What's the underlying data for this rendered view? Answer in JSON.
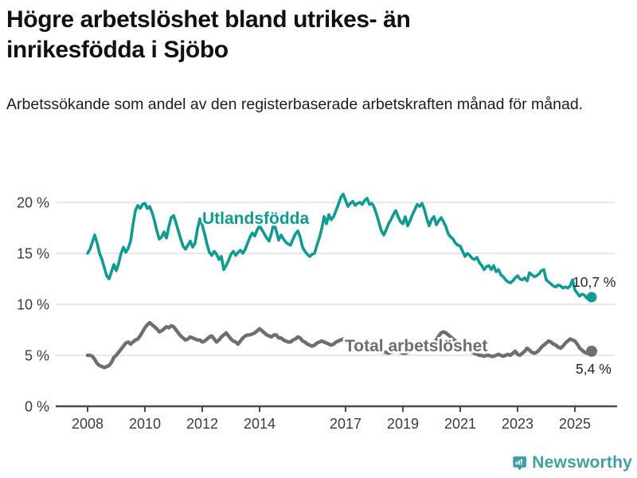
{
  "title": "Högre arbetslöshet bland utrikes- än inrikesfödda i Sjöbo",
  "subtitle": "Arbetssökande som andel av den registerbaserade arbetskraften månad för månad.",
  "footer": {
    "brand": "Newsworthy",
    "brand_color": "#3f9ea7"
  },
  "colors": {
    "series_foreign": "#0d9b93",
    "series_total": "#6c6e71",
    "gridline": "#d9d9d9",
    "axis": "#4a4a4a",
    "annotation": "#222222"
  },
  "chart_data": {
    "type": "line",
    "title": "Arbetssökande som andel av den registerbaserade arbetskraften månad för månad",
    "x_start_year": 2008,
    "x_step_months": 1,
    "x_ticks": [
      2008,
      2010,
      2012,
      2014,
      2017,
      2019,
      2021,
      2023,
      2025
    ],
    "y_ticks": [
      {
        "value": 0,
        "label": "0 %"
      },
      {
        "value": 5,
        "label": "5 %"
      },
      {
        "value": 10,
        "label": "10 %"
      },
      {
        "value": 15,
        "label": "15 %"
      },
      {
        "value": 20,
        "label": "20 %"
      }
    ],
    "ylim": [
      0,
      21.8
    ],
    "grid": true,
    "legend_position": "inline",
    "series": [
      {
        "name": "Utlandsfödda",
        "color": "#0d9b93",
        "end_label": "10,7 %",
        "end_value": 10.7,
        "values": [
          15.0,
          15.4,
          16.1,
          16.8,
          16.0,
          15.0,
          14.4,
          13.6,
          12.8,
          12.5,
          13.2,
          13.9,
          13.3,
          14.0,
          15.0,
          15.6,
          15.1,
          15.5,
          16.2,
          17.8,
          19.2,
          19.7,
          19.4,
          19.8,
          19.9,
          19.4,
          19.6,
          19.0,
          18.2,
          17.2,
          16.4,
          16.6,
          17.1,
          16.5,
          17.6,
          18.5,
          18.7,
          18.0,
          17.2,
          16.4,
          15.7,
          15.4,
          15.8,
          16.2,
          15.6,
          16.0,
          17.4,
          18.4,
          17.8,
          16.9,
          15.9,
          15.1,
          14.8,
          15.2,
          14.9,
          14.4,
          14.7,
          13.4,
          13.8,
          14.3,
          14.9,
          15.2,
          14.8,
          15.1,
          15.3,
          15.0,
          15.4,
          16.0,
          16.6,
          17.0,
          16.7,
          17.3,
          17.7,
          17.3,
          16.9,
          16.5,
          16.2,
          17.0,
          18.0,
          17.2,
          16.3,
          16.8,
          16.4,
          16.1,
          15.9,
          15.8,
          16.4,
          16.9,
          17.2,
          16.6,
          15.6,
          15.2,
          14.9,
          14.7,
          14.9,
          15.0,
          15.8,
          16.5,
          17.4,
          18.6,
          17.9,
          18.8,
          18.3,
          18.6,
          19.2,
          19.8,
          20.5,
          20.8,
          20.2,
          19.6,
          19.9,
          20.1,
          19.7,
          19.9,
          20.0,
          19.8,
          20.2,
          20.4,
          19.8,
          19.9,
          19.5,
          18.8,
          18.0,
          17.2,
          16.8,
          17.3,
          17.9,
          18.3,
          18.8,
          19.2,
          18.6,
          18.1,
          17.9,
          18.6,
          17.7,
          18.2,
          18.8,
          19.3,
          19.8,
          19.6,
          19.9,
          19.3,
          18.4,
          17.7,
          18.3,
          18.6,
          17.8,
          18.2,
          18.5,
          18.1,
          17.6,
          16.9,
          16.6,
          16.4,
          16.0,
          15.8,
          15.7,
          15.2,
          14.7,
          15.0,
          14.8,
          14.5,
          14.4,
          14.6,
          14.1,
          13.8,
          13.4,
          13.7,
          13.8,
          13.4,
          13.8,
          13.2,
          13.4,
          12.9,
          12.7,
          12.4,
          12.2,
          12.1,
          12.3,
          12.6,
          12.8,
          12.5,
          12.4,
          12.6,
          12.3,
          13.1,
          12.9,
          12.7,
          12.8,
          13.0,
          13.3,
          13.4,
          12.4,
          12.2,
          12.0,
          11.8,
          11.7,
          11.9,
          11.8,
          11.6,
          11.7,
          11.6,
          11.8,
          12.4,
          11.4,
          11.1,
          10.8,
          11.0,
          10.9,
          10.6,
          10.5,
          10.7
        ]
      },
      {
        "name": "Total arbetslöshet",
        "color": "#6c6e71",
        "end_label": "5,4 %",
        "end_value": 5.4,
        "values": [
          5.0,
          5.0,
          4.9,
          4.6,
          4.2,
          4.0,
          3.9,
          3.8,
          3.9,
          4.0,
          4.3,
          4.8,
          5.0,
          5.3,
          5.6,
          5.9,
          6.2,
          6.3,
          6.1,
          6.3,
          6.5,
          6.6,
          6.9,
          7.3,
          7.7,
          8.0,
          8.2,
          8.0,
          7.8,
          7.6,
          7.3,
          7.4,
          7.6,
          7.8,
          7.7,
          7.9,
          7.8,
          7.5,
          7.2,
          6.9,
          6.7,
          6.5,
          6.6,
          6.8,
          6.7,
          6.6,
          6.5,
          6.5,
          6.3,
          6.4,
          6.6,
          6.8,
          6.9,
          6.6,
          6.3,
          6.5,
          6.8,
          7.0,
          7.2,
          6.9,
          6.6,
          6.4,
          6.3,
          6.1,
          6.4,
          6.7,
          6.9,
          7.0,
          7.0,
          7.1,
          7.2,
          7.4,
          7.6,
          7.4,
          7.2,
          7.0,
          6.9,
          6.8,
          7.0,
          7.0,
          6.7,
          6.7,
          6.5,
          6.4,
          6.3,
          6.3,
          6.5,
          6.6,
          6.8,
          6.7,
          6.4,
          6.3,
          6.1,
          6.0,
          5.9,
          6.0,
          6.2,
          6.3,
          6.4,
          6.3,
          6.2,
          6.1,
          6.0,
          6.1,
          6.3,
          6.4,
          6.5,
          6.6,
          6.4,
          6.2,
          6.1,
          6.0,
          5.9,
          5.8,
          5.7,
          5.8,
          5.9,
          6.0,
          5.9,
          5.8,
          5.7,
          5.6,
          5.5,
          5.4,
          5.3,
          5.3,
          5.2,
          5.3,
          5.4,
          5.5,
          5.4,
          5.3,
          5.2,
          5.2,
          5.3,
          5.4,
          5.5,
          5.6,
          5.7,
          5.6,
          5.5,
          5.6,
          5.7,
          5.8,
          6.0,
          6.2,
          6.5,
          6.9,
          7.2,
          7.3,
          7.2,
          7.0,
          6.8,
          6.6,
          6.4,
          6.2,
          6.0,
          5.9,
          5.7,
          5.6,
          5.4,
          5.3,
          5.2,
          5.1,
          5.0,
          5.0,
          4.9,
          5.0,
          5.0,
          4.9,
          4.9,
          5.0,
          5.1,
          5.0,
          4.9,
          5.0,
          5.1,
          5.0,
          5.2,
          5.4,
          5.1,
          5.0,
          5.2,
          5.4,
          5.7,
          5.5,
          5.3,
          5.2,
          5.3,
          5.5,
          5.8,
          6.0,
          6.2,
          6.4,
          6.3,
          6.1,
          6.0,
          5.8,
          5.7,
          5.9,
          6.2,
          6.4,
          6.6,
          6.5,
          6.4,
          6.1,
          5.7,
          5.5,
          5.3,
          5.2,
          5.3,
          5.4
        ]
      }
    ]
  }
}
